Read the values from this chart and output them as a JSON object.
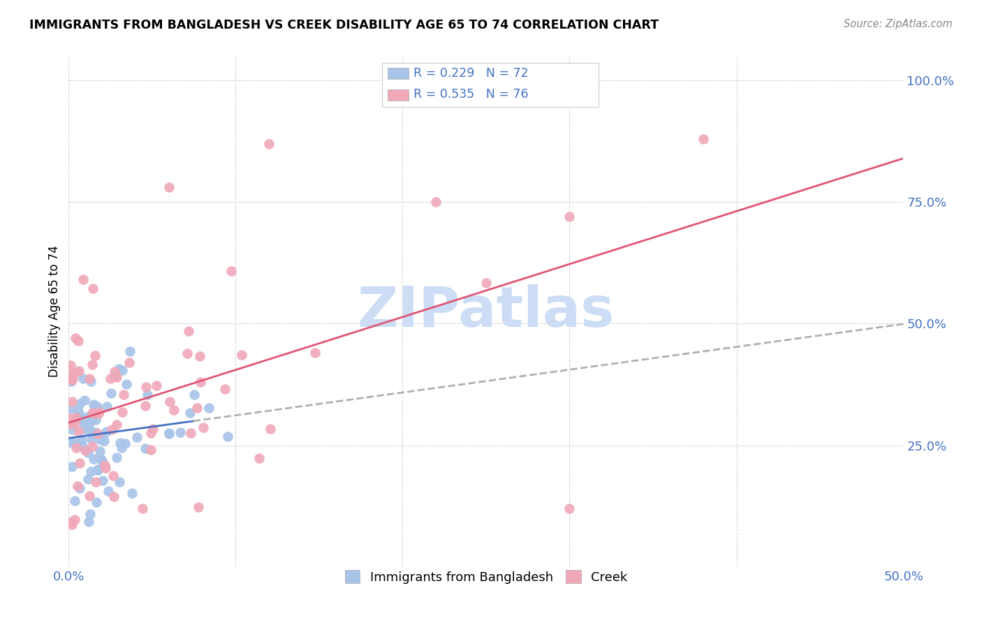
{
  "title": "IMMIGRANTS FROM BANGLADESH VS CREEK DISABILITY AGE 65 TO 74 CORRELATION CHART",
  "source": "Source: ZipAtlas.com",
  "ylabel": "Disability Age 65 to 74",
  "xlim": [
    0.0,
    0.5
  ],
  "ylim": [
    0.0,
    1.05
  ],
  "xtick_positions": [
    0.0,
    0.5
  ],
  "xticklabels": [
    "0.0%",
    "50.0%"
  ],
  "ytick_positions": [
    0.25,
    0.5,
    0.75,
    1.0
  ],
  "yticklabels": [
    "25.0%",
    "50.0%",
    "75.0%",
    "100.0%"
  ],
  "color_bangladesh": "#a8c4e8",
  "color_creek": "#f0a8b8",
  "trendline_bangladesh_color": "#4472c4",
  "trendline_creek_color": "#e05575",
  "trendline_dashed_color": "#b0b0b0",
  "tick_color": "#4472c4",
  "grid_color": "#d0d0d0",
  "watermark_color": "#ccddf5",
  "legend_text_color": "#4472c4",
  "legend_r1": "R = 0.229",
  "legend_n1": "N = 72",
  "legend_r2": "R = 0.535",
  "legend_n2": "N = 76",
  "legend_label1": "Immigrants from Bangladesh",
  "legend_label2": "Creek"
}
